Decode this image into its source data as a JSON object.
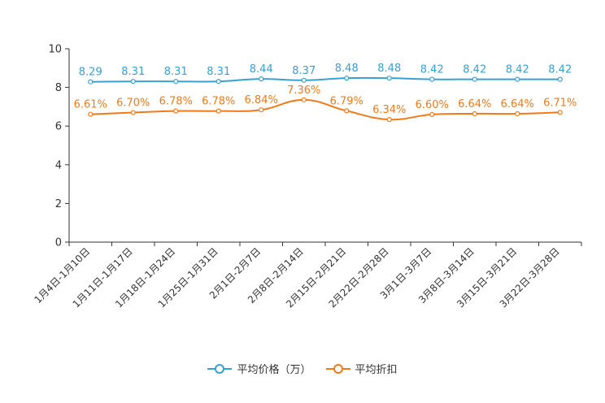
{
  "chart_data": {
    "type": "line",
    "title": "",
    "xlabel": "",
    "ylabel": "",
    "ylim": [
      0,
      10
    ],
    "yticks": [
      0,
      2,
      4,
      6,
      8,
      10
    ],
    "grid": false,
    "legend_position": "bottom-center",
    "categories": [
      "1月4日-1月10日",
      "1月11日-1月17日",
      "1月18日-1月24日",
      "1月25日-1月31日",
      "2月1日-2月7日",
      "2月8日-2月14日",
      "2月15日-2月21日",
      "2月22日-2月28日",
      "3月1日-3月7日",
      "3月8日-3月14日",
      "3月15日-3月21日",
      "3月22日-3月28日"
    ],
    "series": [
      {
        "name": "平均价格（万）",
        "color": "#3a9fd1",
        "values": [
          8.29,
          8.31,
          8.31,
          8.31,
          8.44,
          8.37,
          8.48,
          8.48,
          8.42,
          8.42,
          8.42,
          8.42
        ],
        "labels": [
          "8.29",
          "8.31",
          "8.31",
          "8.31",
          "8.44",
          "8.37",
          "8.48",
          "8.48",
          "8.42",
          "8.42",
          "8.42",
          "8.42"
        ]
      },
      {
        "name": "平均折扣",
        "color": "#f07a1a",
        "values": [
          6.61,
          6.7,
          6.78,
          6.78,
          6.84,
          7.36,
          6.79,
          6.34,
          6.6,
          6.64,
          6.64,
          6.71
        ],
        "labels": [
          "6.61%",
          "6.70%",
          "6.78%",
          "6.78%",
          "6.84%",
          "7.36%",
          "6.79%",
          "6.34%",
          "6.60%",
          "6.64%",
          "6.64%",
          "6.71%"
        ]
      }
    ]
  }
}
